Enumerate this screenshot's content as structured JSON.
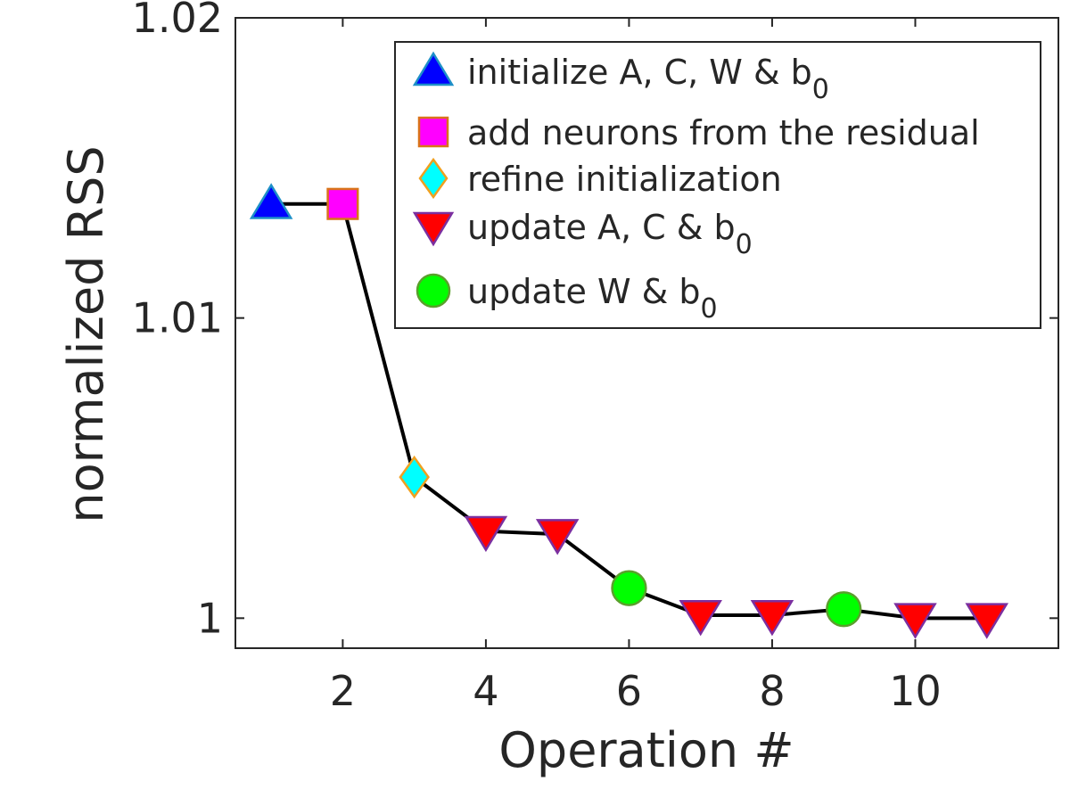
{
  "chart_data": {
    "type": "line",
    "title": "",
    "xlabel": "Operation #",
    "ylabel": "normalized RSS",
    "xlim": [
      0.5,
      12
    ],
    "ylim": [
      0.999,
      1.02
    ],
    "xticks": [
      2,
      4,
      6,
      8,
      10
    ],
    "xtick_labels": [
      "2",
      "4",
      "6",
      "8",
      "10"
    ],
    "yticks": [
      1.0,
      1.01,
      1.02
    ],
    "ytick_labels": [
      "1",
      "1.01",
      "1.02"
    ],
    "grid": false,
    "legend_position": "top-right",
    "line_color": "#000000",
    "x": [
      1,
      2,
      3,
      4,
      5,
      6,
      7,
      8,
      9,
      10,
      11
    ],
    "y": [
      1.0138,
      1.0138,
      1.0047,
      1.0029,
      1.0028,
      1.001,
      1.0001,
      1.0001,
      1.0003,
      1.0,
      1.0
    ],
    "operation_types": [
      "initialize",
      "add",
      "refine",
      "updateACb",
      "updateACb",
      "updateWb",
      "updateACb",
      "updateACb",
      "updateWb",
      "updateACb",
      "updateACb"
    ],
    "legend": [
      {
        "key": "initialize",
        "label": "initialize A, C, W & b",
        "subscript": "0",
        "marker": "triangle-up",
        "fill": "#0000ff",
        "stroke": "#1e90c8"
      },
      {
        "key": "add",
        "label": "add neurons from the residual",
        "subscript": "",
        "marker": "square",
        "fill": "#ff00ff",
        "stroke": "#d9731a"
      },
      {
        "key": "refine",
        "label": "refine initialization",
        "subscript": "",
        "marker": "diamond",
        "fill": "#00ffff",
        "stroke": "#f0a020"
      },
      {
        "key": "updateACb",
        "label": "update A, C & b",
        "subscript": "0",
        "marker": "triangle-down",
        "fill": "#ff0000",
        "stroke": "#7b2fa0"
      },
      {
        "key": "updateWb",
        "label": "update W & b",
        "subscript": "0",
        "marker": "circle",
        "fill": "#00ff00",
        "stroke": "#5aa02c"
      }
    ]
  }
}
